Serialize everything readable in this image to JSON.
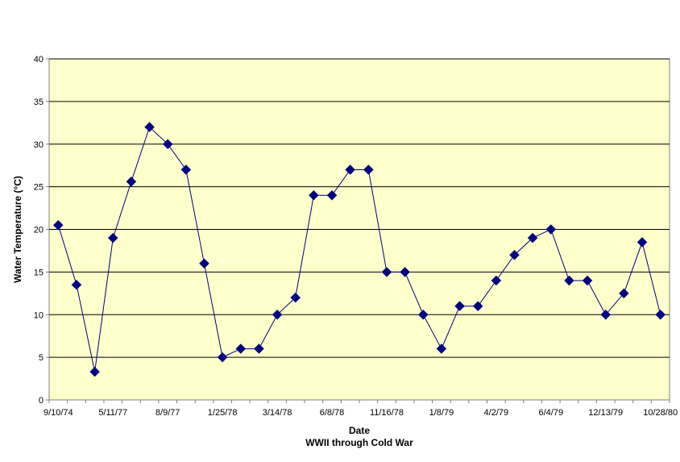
{
  "chart_data": {
    "type": "line",
    "title": "",
    "xlabel": "Date",
    "xlabel_sub": "WWII through Cold War",
    "ylabel": "Water Temperature (°C)",
    "ylim": [
      0,
      40
    ],
    "ytick_step": 5,
    "grid": true,
    "legend": "none",
    "x_tick_labels": [
      "9/10/74",
      "5/11/77",
      "8/9/77",
      "1/25/78",
      "3/14/78",
      "6/8/78",
      "11/16/78",
      "1/8/79",
      "4/2/79",
      "6/4/79",
      "12/13/79",
      "10/28/80"
    ],
    "series": [
      {
        "marker": "diamond",
        "values": [
          20.5,
          13.5,
          3.3,
          19,
          25.6,
          32,
          30,
          27,
          16,
          5,
          6,
          6,
          10,
          12,
          24,
          24,
          27,
          27,
          15,
          15,
          10,
          6,
          11,
          11,
          14,
          17,
          19,
          20,
          14,
          14,
          10,
          12.5,
          18.5,
          10
        ]
      }
    ],
    "colors": {
      "plot_background": "#FFFFCC",
      "series": "#000080",
      "gridline": "#000000",
      "axis": "#808080"
    }
  }
}
